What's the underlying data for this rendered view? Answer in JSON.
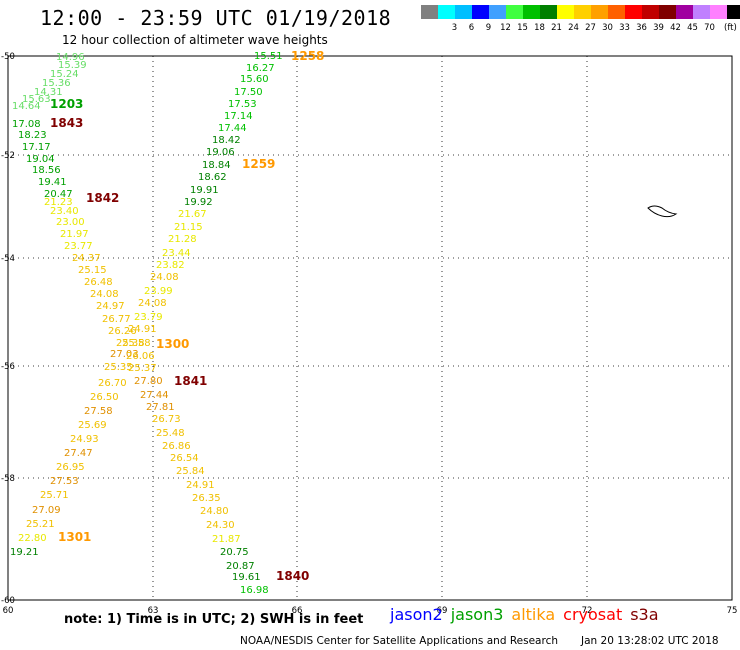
{
  "title": "12:00 - 23:59 UTC 01/19/2018",
  "subtitle": "12 hour collection of altimeter wave heights",
  "colorbar": {
    "unit": "(ft)",
    "labels": [
      "",
      "3",
      "6",
      "9",
      "12",
      "15",
      "18",
      "21",
      "24",
      "27",
      "30",
      "33",
      "36",
      "39",
      "42",
      "45",
      "70"
    ],
    "colors": [
      "#808080",
      "#00ffff",
      "#00bfff",
      "#0000ff",
      "#40a0ff",
      "#40ff40",
      "#00c000",
      "#008000",
      "#ffff00",
      "#ffd000",
      "#ffa000",
      "#ff6000",
      "#ff0000",
      "#c00000",
      "#800000",
      "#a000a0",
      "#c080ff",
      "#ff80ff",
      "#000000"
    ]
  },
  "axes": {
    "lon_ticks": [
      "60",
      "63",
      "66",
      "69",
      "72",
      "75"
    ],
    "lat_ticks": [
      "-50",
      "-52",
      "-54",
      "-56",
      "-58",
      "-60"
    ]
  },
  "note": "note: 1) Time is in UTC; 2) SWH is in feet",
  "legend": [
    {
      "label": "jason2",
      "color": "#0000ff"
    },
    {
      "label": "jason3",
      "color": "#00a000"
    },
    {
      "label": "altika",
      "color": "#ff9900"
    },
    {
      "label": "cryosat",
      "color": "#ff0000"
    },
    {
      "label": "s3a",
      "color": "#800000"
    }
  ],
  "credit": "NOAA/NESDIS Center for Satellite Applications and Research",
  "timestamp": "Jan 20 13:28:02 UTC 2018",
  "map_data": {
    "track_a_values": [
      "14.96",
      "15.39",
      "15.24",
      "15.36",
      "14.31",
      "15.63",
      "14.64"
    ],
    "track_a_color": "#66dd66",
    "track_b_values": [
      "17.08",
      "18.23",
      "17.17",
      "19.04",
      "18.56",
      "19.41",
      "20.47"
    ],
    "track_b_color": "#00a000",
    "track_c_values": [
      "21.23",
      "23.40",
      "23.00",
      "21.97",
      "23.77",
      "24.37",
      "25.15",
      "26.48",
      "24.08",
      "24.97",
      "26.77",
      "26.26",
      "25.38",
      "27.03",
      "25.35",
      "26.70",
      "26.50",
      "27.58",
      "25.69",
      "24.93",
      "27.47",
      "26.95",
      "27.53",
      "25.71",
      "27.09",
      "25.21",
      "22.80",
      "19.21"
    ],
    "track_d_values": [
      "15.51",
      "16.27",
      "15.60",
      "17.50",
      "17.53",
      "17.14",
      "17.44",
      "18.42",
      "19.06",
      "18.84",
      "18.62",
      "19.91",
      "19.92",
      "21.67",
      "21.15",
      "21.28",
      "23.44",
      "23.82",
      "24.08",
      "23.99",
      "24.08",
      "23.79",
      "24.91",
      "25.58",
      "26.06",
      "25.37",
      "27.80",
      "27.44",
      "27.81",
      "26.73",
      "25.48",
      "26.86",
      "26.54",
      "25.84",
      "24.91",
      "26.35",
      "24.80",
      "24.30",
      "21.87",
      "20.75",
      "20.87",
      "19.61",
      "16.98"
    ],
    "pass_labels": [
      {
        "text": "1258",
        "color": "#ff9900"
      },
      {
        "text": "1203",
        "color": "#00a000"
      },
      {
        "text": "1843",
        "color": "#800000"
      },
      {
        "text": "1259",
        "color": "#ff9900"
      },
      {
        "text": "1842",
        "color": "#800000"
      },
      {
        "text": "1300",
        "color": "#ff9900"
      },
      {
        "text": "1841",
        "color": "#800000"
      },
      {
        "text": "1301",
        "color": "#ff9900"
      },
      {
        "text": "1840",
        "color": "#800000"
      }
    ]
  }
}
